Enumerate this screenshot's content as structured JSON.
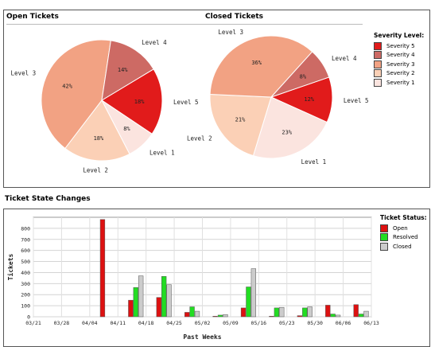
{
  "sections": {
    "open_title": "Open Tickets",
    "closed_title": "Closed Tickets",
    "changes_title": "Ticket State Changes"
  },
  "severity_legend": {
    "title": "Severity Level:",
    "items": [
      {
        "label": "Severity 5",
        "color": "#e11b1b"
      },
      {
        "label": "Severity 4",
        "color": "#cd6a64"
      },
      {
        "label": "Severity 3",
        "color": "#f2a283"
      },
      {
        "label": "Severity 2",
        "color": "#fbd0b6"
      },
      {
        "label": "Severity 1",
        "color": "#fbe4df"
      }
    ]
  },
  "status_legend": {
    "title": "Ticket Status:",
    "items": [
      {
        "label": "Open",
        "color": "#dd1111"
      },
      {
        "label": "Resolved",
        "color": "#22dd22"
      },
      {
        "label": "Closed",
        "color": "#cccccc"
      }
    ]
  },
  "chart_data": [
    {
      "type": "pie",
      "title": "Open Tickets",
      "slices": [
        {
          "label": "Level 5",
          "value": 18,
          "value_label": "18%",
          "color": "#e11b1b"
        },
        {
          "label": "Level 1",
          "value": 8,
          "value_label": "8%",
          "color": "#fbe4df"
        },
        {
          "label": "Level 2",
          "value": 18,
          "value_label": "18%",
          "color": "#fbd0b6"
        },
        {
          "label": "Level 3",
          "value": 42,
          "value_label": "42%",
          "color": "#f2a283"
        },
        {
          "label": "Level 4",
          "value": 14,
          "value_label": "14%",
          "color": "#cd6a64"
        }
      ]
    },
    {
      "type": "pie",
      "title": "Closed Tickets",
      "slices": [
        {
          "label": "Level 5",
          "value": 12,
          "value_label": "12%",
          "color": "#e11b1b"
        },
        {
          "label": "Level 1",
          "value": 23,
          "value_label": "23%",
          "color": "#fbe4df"
        },
        {
          "label": "Level 2",
          "value": 21,
          "value_label": "21%",
          "color": "#fbd0b6"
        },
        {
          "label": "Level 3",
          "value": 36,
          "value_label": "36%",
          "color": "#f2a283"
        },
        {
          "label": "Level 4",
          "value": 8,
          "value_label": "8%",
          "color": "#cd6a64"
        }
      ]
    },
    {
      "type": "bar",
      "title": "Ticket State Changes",
      "xlabel": "Past Weeks",
      "ylabel": "Tickets",
      "ylim": [
        0,
        900
      ],
      "yticks": [
        0,
        100,
        200,
        300,
        400,
        500,
        600,
        700,
        800
      ],
      "grid": true,
      "legend": "right",
      "x_ticks": [
        "03/21",
        "03/28",
        "04/04",
        "04/11",
        "04/18",
        "04/25",
        "05/02",
        "05/09",
        "05/16",
        "05/23",
        "05/30",
        "06/06",
        "06/13"
      ],
      "categories": [
        "03/21",
        "03/28",
        "04/04",
        "04/11",
        "04/18",
        "04/25",
        "05/02",
        "05/09",
        "05/16",
        "05/23",
        "05/30",
        "06/06"
      ],
      "series": [
        {
          "name": "Open",
          "color": "#dd1111",
          "values": [
            0,
            0,
            880,
            150,
            175,
            40,
            5,
            80,
            5,
            10,
            105,
            110
          ]
        },
        {
          "name": "Resolved",
          "color": "#22dd22",
          "values": [
            0,
            0,
            0,
            265,
            365,
            90,
            15,
            270,
            80,
            80,
            25,
            25
          ]
        },
        {
          "name": "Closed",
          "color": "#cccccc",
          "values": [
            0,
            0,
            0,
            370,
            290,
            50,
            20,
            435,
            85,
            90,
            15,
            50
          ]
        }
      ]
    }
  ]
}
